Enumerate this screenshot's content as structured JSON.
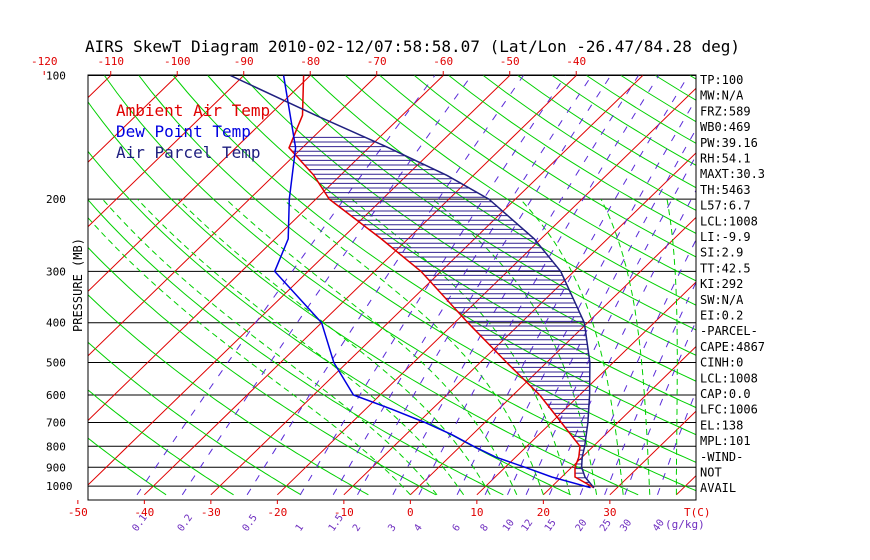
{
  "title": "AIRS SkewT Diagram 2010-02-12/07:58:58.07 (Lat/Lon -26.47/84.28 deg)",
  "colors": {
    "ambient": "#e00000",
    "dewpoint": "#0000e0",
    "parcel": "#202080",
    "isotherm": "#e00000",
    "dry_adiabat": "#00d000",
    "moist_adiabat": "#00d000",
    "mixing_ratio": "#5a2bd8",
    "axis": "#000000",
    "hatch": "#302090"
  },
  "legend": [
    {
      "label": "Ambient Air Temp",
      "color": "#e00000"
    },
    {
      "label": "Dew Point Temp",
      "color": "#0000e0"
    },
    {
      "label": "Air Parcel Temp",
      "color": "#202080"
    }
  ],
  "ylabel": "PRESSURE (MB)",
  "xunit_bottom": "T(C)",
  "mixing_unit": "(g/kg)",
  "indices": [
    "TP:100",
    "MW:N/A",
    "FRZ:589",
    "WB0:469",
    "PW:39.16",
    "RH:54.1",
    "MAXT:30.3",
    "TH:5463",
    "L57:6.7",
    "LCL:1008",
    "LI:-9.9",
    "SI:2.9",
    "TT:42.5",
    "KI:292",
    "SW:N/A",
    "EI:0.2",
    "-PARCEL-",
    "CAPE:4867",
    "CINH:0",
    "LCL:1008",
    "CAP:0.0",
    "LFC:1006",
    "EL:138",
    "MPL:101",
    "-WIND-",
    "NOT",
    "AVAIL"
  ],
  "chart_data": {
    "type": "line",
    "title": "AIRS SkewT Diagram 2010-02-12/07:58:58.07 (Lat/Lon -26.47/84.28 deg)",
    "ylabel": "PRESSURE (MB)",
    "xlabel": "T(C)",
    "y_log": true,
    "y_range": [
      1050,
      100
    ],
    "pressure_ticks": [
      100,
      200,
      300,
      400,
      500,
      600,
      700,
      800,
      900,
      1000
    ],
    "top_temp_ticks": [
      -120,
      -110,
      -100,
      -90,
      -80,
      -70,
      -60,
      -50,
      -40
    ],
    "bottom_temp_ticks": [
      -50,
      -40,
      -30,
      -20,
      -10,
      0,
      10,
      20,
      30
    ],
    "mixing_ratio_labels": [
      "0.1",
      "0.2",
      "0.5",
      "1",
      "1.5",
      "2",
      "3",
      "4",
      "6",
      "8",
      "10",
      "12",
      "15",
      "20",
      "25",
      "30",
      "40"
    ],
    "series": [
      {
        "name": "Ambient Air Temp",
        "points": [
          [
            1009,
            26.5
          ],
          [
            950,
            22
          ],
          [
            900,
            20.5
          ],
          [
            850,
            19.5
          ],
          [
            800,
            18
          ],
          [
            700,
            11.5
          ],
          [
            600,
            4
          ],
          [
            500,
            -6
          ],
          [
            400,
            -18
          ],
          [
            300,
            -33
          ],
          [
            250,
            -44
          ],
          [
            200,
            -58
          ],
          [
            175,
            -64
          ],
          [
            150,
            -72
          ],
          [
            125,
            -75
          ],
          [
            100,
            -81
          ]
        ]
      },
      {
        "name": "Dew Point Temp",
        "points": [
          [
            1009,
            26
          ],
          [
            950,
            18.5
          ],
          [
            900,
            13
          ],
          [
            850,
            7
          ],
          [
            800,
            2
          ],
          [
            750,
            -3
          ],
          [
            700,
            -9
          ],
          [
            650,
            -16
          ],
          [
            600,
            -24
          ],
          [
            500,
            -32
          ],
          [
            400,
            -40
          ],
          [
            300,
            -55
          ],
          [
            250,
            -58
          ],
          [
            200,
            -64
          ],
          [
            150,
            -71
          ],
          [
            100,
            -84
          ]
        ]
      },
      {
        "name": "Air Parcel Temp",
        "points": [
          [
            1009,
            26.5
          ],
          [
            950,
            23.5
          ],
          [
            900,
            21.5
          ],
          [
            850,
            20
          ],
          [
            800,
            18.7
          ],
          [
            700,
            15.5
          ],
          [
            600,
            11.5
          ],
          [
            500,
            6.5
          ],
          [
            400,
            -0.5
          ],
          [
            300,
            -12
          ],
          [
            250,
            -21
          ],
          [
            200,
            -34
          ],
          [
            175,
            -44
          ],
          [
            150,
            -57
          ],
          [
            125,
            -73
          ],
          [
            100,
            -92
          ]
        ]
      }
    ]
  }
}
